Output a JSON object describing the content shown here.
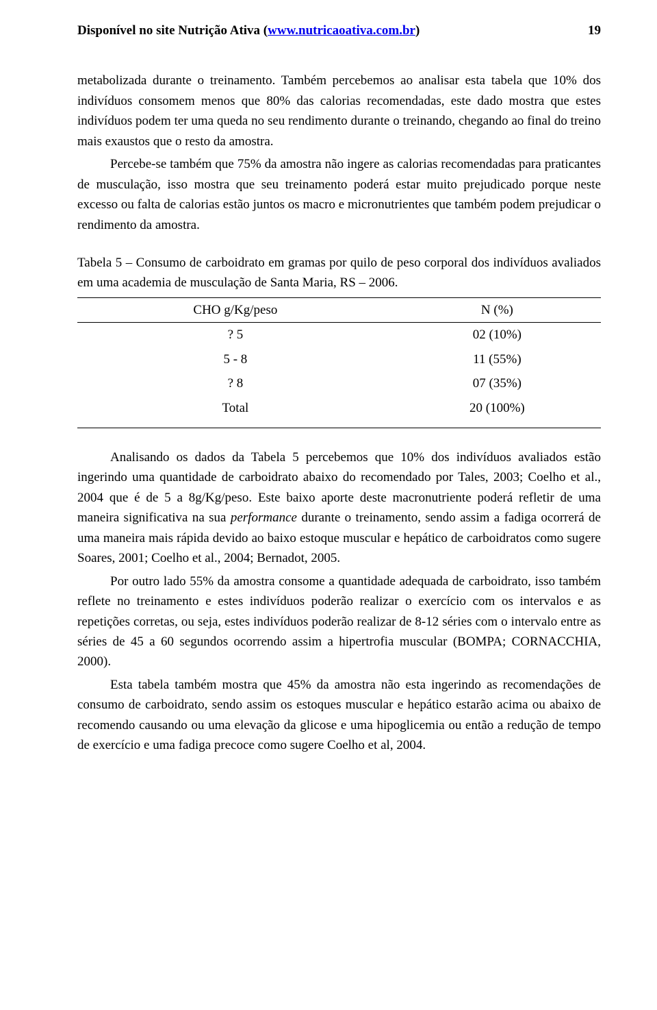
{
  "header": {
    "site_prefix": "Disponível no site Nutrição Ativa (",
    "site_url": "www.nutricaoativa.com.br",
    "site_suffix": ")",
    "page_number": "19"
  },
  "para1_a": "metabolizada durante o treinamento. Também percebemos ao analisar esta tabela que 10% dos indivíduos consomem menos que 80% das calorias recomendadas, este dado mostra que estes indivíduos podem ter uma queda no seu rendimento durante o treinando, chegando ao final do treino mais exaustos que o resto da amostra.",
  "para2": "Percebe-se também que 75% da amostra não ingere as calorias recomendadas para praticantes de musculação, isso mostra que seu treinamento poderá estar muito prejudicado porque neste excesso ou falta de calorias estão juntos os macro e micronutrientes que também podem prejudicar o rendimento da amostra.",
  "table_caption": "Tabela 5 – Consumo de carboidrato em gramas por quilo de peso corporal dos indivíduos avaliados em uma academia de musculação de Santa Maria, RS – 2006.",
  "table": {
    "col1": "CHO g/Kg/peso",
    "col2": "N (%)",
    "rows": [
      {
        "a": "? 5",
        "b": "02 (10%)"
      },
      {
        "a": "5 - 8",
        "b": "11 (55%)"
      },
      {
        "a": "? 8",
        "b": "07 (35%)"
      },
      {
        "a": "Total",
        "b": "20 (100%)"
      }
    ]
  },
  "para3_a": "Analisando os dados da Tabela 5 percebemos que 10% dos indivíduos avaliados estão ingerindo uma quantidade de carboidrato abaixo do recomendado por Tales, 2003; Coelho et al., 2004 que é de 5 a 8g/Kg/peso. Este baixo aporte deste macronutriente poderá refletir de uma maneira significativa na sua ",
  "para3_it": "performance",
  "para3_b": " durante o treinamento, sendo assim a fadiga ocorrerá de uma maneira mais rápida devido ao baixo estoque muscular e hepático de carboidratos como sugere Soares, 2001; Coelho et al., 2004; Bernadot, 2005.",
  "para4": "Por outro lado 55% da amostra consome a quantidade adequada de carboidrato, isso também reflete no treinamento e estes indivíduos poderão realizar o exercício com os intervalos e as repetições corretas, ou seja, estes indivíduos poderão realizar de 8-12 séries com o intervalo entre as séries de 45 a 60 segundos ocorrendo assim a hipertrofia muscular (BOMPA; CORNACCHIA, 2000).",
  "para5": "Esta tabela também mostra que 45% da amostra não esta ingerindo as recomendações de consumo de carboidrato, sendo assim os estoques muscular e hepático estarão acima ou abaixo de recomendo causando ou uma elevação da glicose e uma hipoglicemia ou então a redução de tempo de exercício e uma fadiga precoce como sugere Coelho et al, 2004."
}
